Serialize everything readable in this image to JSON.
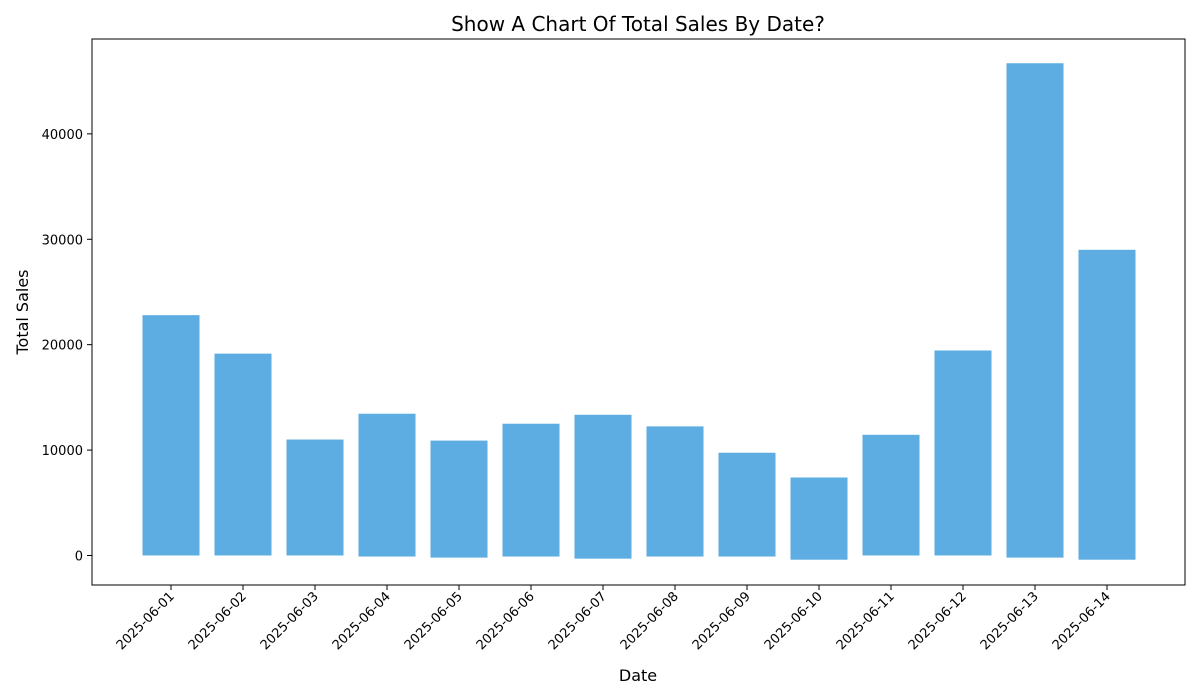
{
  "chart_data": {
    "type": "bar",
    "title": "Show A Chart Of Total Sales By Date?",
    "xlabel": "Date",
    "ylabel": "Total Sales",
    "categories": [
      "2025-06-01",
      "2025-06-02",
      "2025-06-03",
      "2025-06-04",
      "2025-06-05",
      "2025-06-06",
      "2025-06-07",
      "2025-06-08",
      "2025-06-09",
      "2025-06-10",
      "2025-06-11",
      "2025-06-12",
      "2025-06-13",
      "2025-06-14"
    ],
    "values": [
      22800,
      19150,
      11000,
      13450,
      10900,
      12500,
      13350,
      12250,
      9750,
      7400,
      11450,
      19450,
      46700,
      29000
    ],
    "low_values": [
      0,
      0,
      0,
      -100,
      -200,
      -100,
      -300,
      -100,
      -100,
      -400,
      0,
      0,
      -200,
      -400
    ],
    "ylim": [
      -2800,
      49000
    ],
    "yticks": [
      0,
      10000,
      20000,
      30000,
      40000
    ],
    "grid": false,
    "bar_color": "#5dade2"
  }
}
